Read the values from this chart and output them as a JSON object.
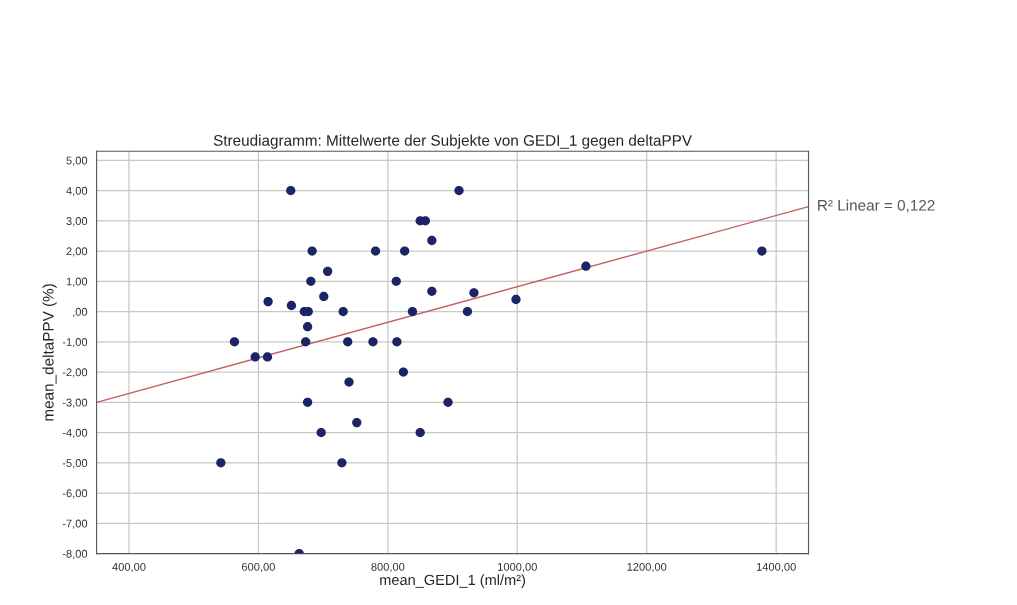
{
  "chart_data": {
    "type": "scatter",
    "title": "Streudiagramm: Mittelwerte der Subjekte von GEDI_1 gegen deltaPPV",
    "xlabel": "mean_GEDI_1 (ml/m²)",
    "ylabel": "mean_deltaPPV (%)",
    "series": [
      {
        "color": "#1c2466",
        "marker": "circle",
        "x": [
          650,
          910,
          850,
          858,
          868,
          683,
          781,
          826,
          1378,
          1106,
          707,
          681,
          813,
          868,
          933,
          701,
          998,
          615,
          651,
          671,
          677,
          731,
          838,
          923,
          676,
          563,
          673,
          738,
          777,
          814,
          595,
          614,
          824,
          740,
          676,
          893,
          752,
          697,
          850,
          542,
          729,
          663
        ],
        "values": [
          4,
          4,
          3,
          3,
          2.35,
          2,
          2,
          2,
          2,
          1.5,
          1.33,
          1,
          1,
          0.67,
          0.62,
          0.5,
          0.4,
          0.33,
          0.2,
          0,
          0,
          0,
          0,
          0,
          -0.5,
          -1,
          -1,
          -1,
          -1,
          -1,
          -1.5,
          -1.5,
          -2,
          -2.33,
          -3,
          -3,
          -3.67,
          -4,
          -4,
          -5,
          -5,
          -8
        ]
      },
      {
        "type": "line",
        "color": "#c06060",
        "marker": "none",
        "line_style": "solid",
        "x": [
          350,
          1450
        ],
        "values": [
          -3.0,
          3.47
        ]
      }
    ],
    "annotations": [
      {
        "text": "R² Linear = 0,122",
        "x": 1450,
        "y": 3.47
      }
    ],
    "xlim": [
      350,
      1450
    ],
    "ylim": [
      -8,
      5.3
    ],
    "xticks": [
      {
        "value": 400,
        "label": "400,00"
      },
      {
        "value": 600,
        "label": "600,00"
      },
      {
        "value": 800,
        "label": "800,00"
      },
      {
        "value": 1000,
        "label": "1000,00"
      },
      {
        "value": 1200,
        "label": "1200,00"
      },
      {
        "value": 1400,
        "label": "1400,00"
      }
    ],
    "yticks": [
      {
        "value": 5,
        "label": "5,00"
      },
      {
        "value": 4,
        "label": "4,00"
      },
      {
        "value": 3,
        "label": "3,00"
      },
      {
        "value": 2,
        "label": "2,00"
      },
      {
        "value": 1,
        "label": "1,00"
      },
      {
        "value": 0,
        "label": ",00"
      },
      {
        "value": -1,
        "label": "-1,00"
      },
      {
        "value": -2,
        "label": "-2,00"
      },
      {
        "value": -3,
        "label": "-3,00"
      },
      {
        "value": -4,
        "label": "-4,00"
      },
      {
        "value": -5,
        "label": "-5,00"
      },
      {
        "value": -6,
        "label": "-6,00"
      },
      {
        "value": -7,
        "label": "-7,00"
      },
      {
        "value": -8,
        "label": "-8,00"
      }
    ],
    "grid": true,
    "legend": false
  }
}
